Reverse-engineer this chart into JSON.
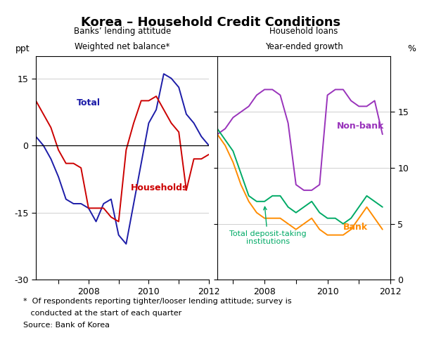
{
  "title": "Korea – Household Credit Conditions",
  "left_title1": "Banks’ lending attitude",
  "left_title2": "Weighted net balance*",
  "right_title1": "Household loans",
  "right_title2": "Year-ended growth",
  "left_ylabel": "ppt",
  "right_ylabel": "%",
  "left_ylim": [
    -30,
    20
  ],
  "right_ylim": [
    0,
    20
  ],
  "left_yticks": [
    -30,
    -15,
    0,
    15
  ],
  "right_yticks": [
    0,
    5,
    10,
    15
  ],
  "left_xticks": [
    2007,
    2008,
    2009,
    2010,
    2011,
    2012
  ],
  "left_xticklabels": [
    "",
    "2008",
    "",
    "2010",
    "",
    "2012"
  ],
  "right_xticks": [
    2007,
    2008,
    2009,
    2010,
    2011,
    2012
  ],
  "right_xticklabels": [
    "",
    "2008",
    "",
    "2010",
    "",
    "2012"
  ],
  "footnote_line1": "*  Of respondents reporting tighter/looser lending attitude; survey is",
  "footnote_line2": "   conducted at the start of each quarter",
  "footnote_line3": "Source: Bank of Korea",
  "colors": {
    "total": "#1C1CA8",
    "households": "#CC0000",
    "nonbank": "#9933BB",
    "bank": "#FF8C00",
    "deposit": "#00AA66"
  },
  "total_x": [
    2006.25,
    2006.5,
    2006.75,
    2007.0,
    2007.25,
    2007.5,
    2007.75,
    2008.0,
    2008.25,
    2008.5,
    2008.75,
    2009.0,
    2009.25,
    2009.5,
    2009.75,
    2010.0,
    2010.25,
    2010.5,
    2010.75,
    2011.0,
    2011.25,
    2011.5,
    2011.75,
    2012.0
  ],
  "total_y": [
    2,
    0,
    -3,
    -7,
    -12,
    -13,
    -13,
    -14,
    -17,
    -13,
    -12,
    -20,
    -22,
    -13,
    -4,
    5,
    8,
    16,
    15,
    13,
    7,
    5,
    2,
    0
  ],
  "households_x": [
    2006.25,
    2006.5,
    2006.75,
    2007.0,
    2007.25,
    2007.5,
    2007.75,
    2008.0,
    2008.25,
    2008.5,
    2008.75,
    2009.0,
    2009.25,
    2009.5,
    2009.75,
    2010.0,
    2010.25,
    2010.5,
    2010.75,
    2011.0,
    2011.25,
    2011.5,
    2011.75,
    2012.0
  ],
  "households_y": [
    10,
    7,
    4,
    -1,
    -4,
    -4,
    -5,
    -14,
    -14,
    -14,
    -16,
    -17,
    -1,
    5,
    10,
    10,
    11,
    8,
    5,
    3,
    -10,
    -3,
    -3,
    -2
  ],
  "nonbank_x": [
    2006.5,
    2006.75,
    2007.0,
    2007.25,
    2007.5,
    2007.75,
    2008.0,
    2008.25,
    2008.5,
    2008.75,
    2009.0,
    2009.25,
    2009.5,
    2009.75,
    2010.0,
    2010.25,
    2010.5,
    2010.75,
    2011.0,
    2011.25,
    2011.5,
    2011.75
  ],
  "nonbank_y": [
    13.0,
    13.5,
    14.5,
    15.0,
    15.5,
    16.5,
    17.0,
    17.0,
    16.5,
    14.0,
    8.5,
    8.0,
    8.0,
    8.5,
    16.5,
    17.0,
    17.0,
    16.0,
    15.5,
    15.5,
    16.0,
    13.0
  ],
  "bank_x": [
    2006.5,
    2006.75,
    2007.0,
    2007.25,
    2007.5,
    2007.75,
    2008.0,
    2008.25,
    2008.5,
    2008.75,
    2009.0,
    2009.25,
    2009.5,
    2009.75,
    2010.0,
    2010.25,
    2010.5,
    2010.75,
    2011.0,
    2011.25,
    2011.5,
    2011.75
  ],
  "bank_y": [
    13.0,
    12.0,
    10.5,
    8.5,
    7.0,
    6.0,
    5.5,
    5.5,
    5.5,
    5.0,
    4.5,
    5.0,
    5.5,
    4.5,
    4.0,
    4.0,
    4.0,
    4.5,
    5.5,
    6.5,
    5.5,
    4.5
  ],
  "deposit_x": [
    2006.5,
    2006.75,
    2007.0,
    2007.25,
    2007.5,
    2007.75,
    2008.0,
    2008.25,
    2008.5,
    2008.75,
    2009.0,
    2009.25,
    2009.5,
    2009.75,
    2010.0,
    2010.25,
    2010.5,
    2010.75,
    2011.0,
    2011.25,
    2011.5,
    2011.75
  ],
  "deposit_y": [
    13.5,
    12.5,
    11.5,
    9.5,
    7.5,
    7.0,
    7.0,
    7.5,
    7.5,
    6.5,
    6.0,
    6.5,
    7.0,
    6.0,
    5.5,
    5.5,
    5.0,
    5.5,
    6.5,
    7.5,
    7.0,
    6.5
  ]
}
